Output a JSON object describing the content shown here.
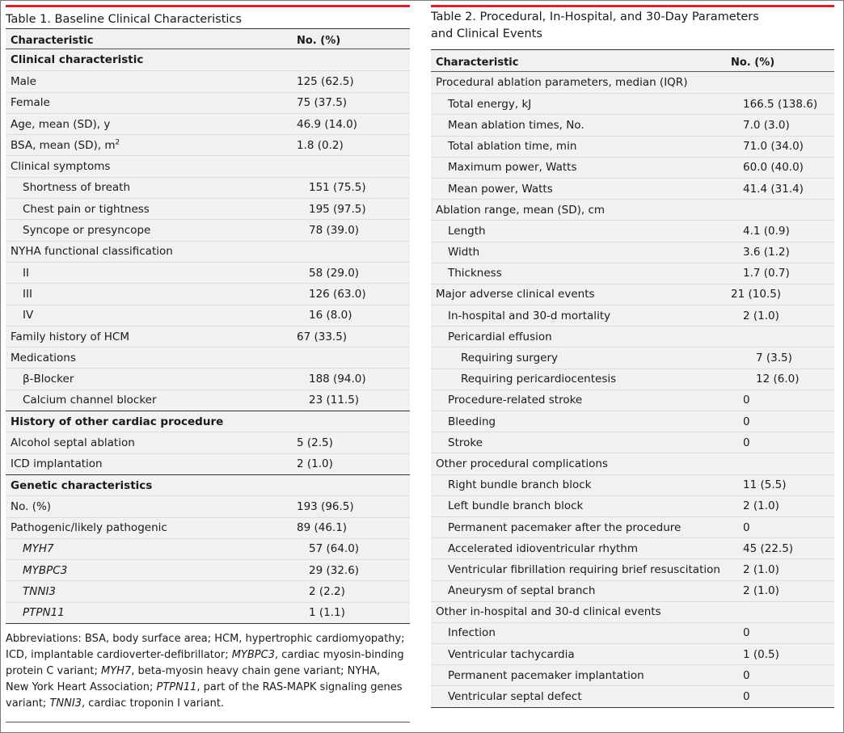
{
  "table1": {
    "title": "Table 1. Baseline Clinical Characteristics",
    "col1": "Characteristic",
    "col2": "No. (%)",
    "rows": [
      {
        "label": "Clinical characteristic",
        "value": ""
      },
      {
        "label": "Male",
        "value": "125 (62.5)"
      },
      {
        "label": "Female",
        "value": "75 (37.5)"
      },
      {
        "label": "Age, mean (SD), y",
        "value": "46.9 (14.0)"
      },
      {
        "label": "BSA, mean (SD), m",
        "sup": "2",
        "value": "1.8 (0.2)"
      },
      {
        "label": "Clinical symptoms",
        "value": ""
      },
      {
        "label": "Shortness of breath",
        "value": "151 (75.5)"
      },
      {
        "label": "Chest pain or tightness",
        "value": "195 (97.5)"
      },
      {
        "label": "Syncope or presyncope",
        "value": "78 (39.0)"
      },
      {
        "label": "NYHA functional classification",
        "value": ""
      },
      {
        "label": "II",
        "value": "58 (29.0)"
      },
      {
        "label": "III",
        "value": "126 (63.0)"
      },
      {
        "label": "IV",
        "value": "16 (8.0)"
      },
      {
        "label": "Family history of HCM",
        "value": "67 (33.5)"
      },
      {
        "label": "Medications",
        "value": ""
      },
      {
        "label": "β-Blocker",
        "value": "188 (94.0)"
      },
      {
        "label": "Calcium channel blocker",
        "value": "23 (11.5)"
      },
      {
        "label": "History of other cardiac procedure",
        "value": ""
      },
      {
        "label": "Alcohol septal ablation",
        "value": "5 (2.5)"
      },
      {
        "label": "ICD implantation",
        "value": "2 (1.0)"
      },
      {
        "label": "Genetic characteristics",
        "value": ""
      },
      {
        "label": "No. (%)",
        "value": "193 (96.5)"
      },
      {
        "label": "Pathogenic/likely pathogenic",
        "value": "89 (46.1)"
      },
      {
        "label": "MYH7",
        "value": "57 (64.0)"
      },
      {
        "label": "MYBPC3",
        "value": "29 (32.6)"
      },
      {
        "label": "TNNI3",
        "value": "2 (2.2)"
      },
      {
        "label": "PTPN11",
        "value": "1 (1.1)"
      }
    ],
    "footnote": [
      {
        "t": "Abbreviations: BSA, body surface area; HCM, hypertrophic cardiomyopathy; ICD, implantable cardioverter-defibrillator; "
      },
      {
        "t": "MYBPC3",
        "i": true
      },
      {
        "t": ", cardiac myosin-binding protein C variant; "
      },
      {
        "t": "MYH7",
        "i": true
      },
      {
        "t": ", beta-myosin heavy chain gene variant; NYHA, New York Heart Association; "
      },
      {
        "t": "PTPN11",
        "i": true
      },
      {
        "t": ", part of the RAS-MAPK signaling genes variant; "
      },
      {
        "t": "TNNI3",
        "i": true
      },
      {
        "t": ", cardiac troponin I variant."
      }
    ]
  },
  "table2": {
    "title_line1": "Table 2. Procedural, In-Hospital, and 30-Day Parameters",
    "title_line2": "and Clinical Events",
    "col1": "Characteristic",
    "col2": "No. (%)",
    "rows": [
      {
        "label": "Procedural ablation parameters, median (IQR)",
        "value": ""
      },
      {
        "label": "Total energy, kJ",
        "value": "166.5 (138.6)"
      },
      {
        "label": "Mean ablation times, No.",
        "value": "7.0 (3.0)"
      },
      {
        "label": "Total ablation time, min",
        "value": "71.0 (34.0)"
      },
      {
        "label": "Maximum power, Watts",
        "value": "60.0 (40.0)"
      },
      {
        "label": "Mean power, Watts",
        "value": "41.4 (31.4)"
      },
      {
        "label": "Ablation range, mean (SD), cm",
        "value": ""
      },
      {
        "label": "Length",
        "value": "4.1 (0.9)"
      },
      {
        "label": "Width",
        "value": "3.6 (1.2)"
      },
      {
        "label": "Thickness",
        "value": "1.7 (0.7)"
      },
      {
        "label": "Major adverse clinical events",
        "value": "21 (10.5)"
      },
      {
        "label": "In-hospital and 30-d mortality",
        "value": "2 (1.0)"
      },
      {
        "label": "Pericardial effusion",
        "value": ""
      },
      {
        "label": "Requiring surgery",
        "value": "7 (3.5)"
      },
      {
        "label": "Requiring pericardiocentesis",
        "value": "12 (6.0)"
      },
      {
        "label": "Procedure-related stroke",
        "value": "0"
      },
      {
        "label": "Bleeding",
        "value": "0"
      },
      {
        "label": "Stroke",
        "value": "0"
      },
      {
        "label": "Other procedural complications",
        "value": ""
      },
      {
        "label": "Right bundle branch block",
        "value": "11 (5.5)"
      },
      {
        "label": "Left bundle branch block",
        "value": "2 (1.0)"
      },
      {
        "label": "Permanent pacemaker after the procedure",
        "value": "0"
      },
      {
        "label": "Accelerated idioventricular rhythm",
        "value": "45 (22.5)"
      },
      {
        "label": "Ventricular fibrillation requiring brief resuscitation",
        "value": "2 (1.0)"
      },
      {
        "label": "Aneurysm of septal branch",
        "value": "2 (1.0)"
      },
      {
        "label": "Other in-hospital and 30-d clinical events",
        "value": ""
      },
      {
        "label": "Infection",
        "value": "0"
      },
      {
        "label": "Ventricular tachycardia",
        "value": "1 (0.5)"
      },
      {
        "label": "Permanent pacemaker implantation",
        "value": "0"
      },
      {
        "label": "Ventricular septal defect",
        "value": "0"
      }
    ]
  },
  "colors": {
    "accent_rule": "#d8232a",
    "band": "#f1f1f1"
  }
}
